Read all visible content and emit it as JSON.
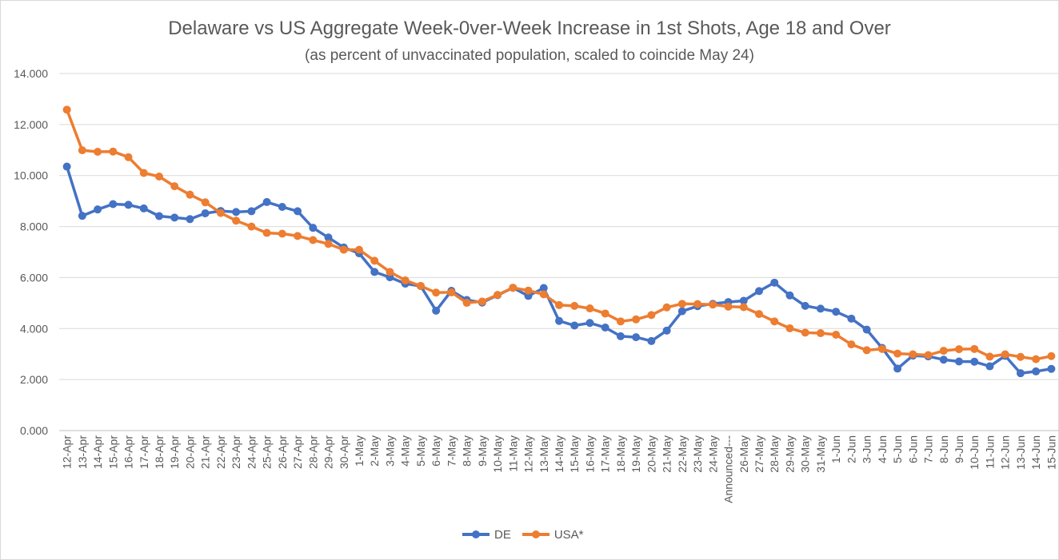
{
  "chart_data": {
    "type": "line",
    "title": "Delaware vs US Aggregate Week-0ver-Week  Increase in 1st Shots, Age 18 and Over",
    "subtitle": "(as percent of unvaccinated population, scaled to coincide May 24)",
    "xlabel": "",
    "ylabel": "",
    "ylim": [
      0,
      14
    ],
    "yticks": [
      "0.000",
      "2.000",
      "4.000",
      "6.000",
      "8.000",
      "10.000",
      "12.000",
      "14.000"
    ],
    "grid": true,
    "legend_position": "bottom",
    "categories": [
      "12-Apr",
      "13-Apr",
      "14-Apr",
      "15-Apr",
      "16-Apr",
      "17-Apr",
      "18-Apr",
      "19-Apr",
      "20-Apr",
      "21-Apr",
      "22-Apr",
      "23-Apr",
      "24-Apr",
      "25-Apr",
      "26-Apr",
      "27-Apr",
      "28-Apr",
      "29-Apr",
      "30-Apr",
      "1-May",
      "2-May",
      "3-May",
      "4-May",
      "5-May",
      "6-May",
      "7-May",
      "8-May",
      "9-May",
      "10-May",
      "11-May",
      "12-May",
      "13-May",
      "14-May",
      "15-May",
      "16-May",
      "17-May",
      "18-May",
      "19-May",
      "20-May",
      "21-May",
      "22-May",
      "23-May",
      "24-May",
      "Announced---",
      "26-May",
      "27-May",
      "28-May",
      "29-May",
      "30-May",
      "31-May",
      "1-Jun",
      "2-Jun",
      "3-Jun",
      "4-Jun",
      "5-Jun",
      "6-Jun",
      "7-Jun",
      "8-Jun",
      "9-Jun",
      "10-Jun",
      "11-Jun",
      "12-Jun",
      "13-Jun",
      "14-Jun",
      "15-Jun"
    ],
    "series": [
      {
        "name": "DE",
        "color": "#4472c4",
        "values": [
          10.35,
          8.42,
          8.67,
          8.88,
          8.85,
          8.71,
          8.41,
          8.35,
          8.29,
          8.52,
          8.61,
          8.57,
          8.6,
          8.96,
          8.77,
          8.6,
          7.95,
          7.57,
          7.18,
          6.95,
          6.22,
          6.01,
          5.76,
          5.67,
          4.7,
          5.48,
          5.12,
          5.02,
          5.31,
          5.6,
          5.28,
          5.59,
          4.3,
          4.12,
          4.22,
          4.04,
          3.7,
          3.66,
          3.51,
          3.92,
          4.68,
          4.88,
          4.97,
          5.04,
          5.09,
          5.47,
          5.8,
          5.3,
          4.89,
          4.78,
          4.66,
          4.39,
          3.96,
          3.24,
          2.43,
          2.94,
          2.91,
          2.78,
          2.71,
          2.7,
          2.52,
          2.93,
          2.25,
          2.32,
          2.42
        ]
      },
      {
        "name": "USA*",
        "color": "#ed7d31",
        "values": [
          12.58,
          10.99,
          10.93,
          10.94,
          10.72,
          10.1,
          9.96,
          9.58,
          9.25,
          8.95,
          8.53,
          8.23,
          8.0,
          7.75,
          7.72,
          7.63,
          7.47,
          7.32,
          7.09,
          7.09,
          6.66,
          6.22,
          5.89,
          5.67,
          5.41,
          5.42,
          5.01,
          5.06,
          5.32,
          5.6,
          5.49,
          5.34,
          4.92,
          4.89,
          4.79,
          4.59,
          4.28,
          4.36,
          4.53,
          4.83,
          4.97,
          4.96,
          4.94,
          4.86,
          4.84,
          4.57,
          4.28,
          4.01,
          3.84,
          3.82,
          3.76,
          3.38,
          3.15,
          3.2,
          3.02,
          2.99,
          2.96,
          3.13,
          3.19,
          3.2,
          2.9,
          2.99,
          2.89,
          2.8,
          2.92
        ]
      }
    ]
  }
}
